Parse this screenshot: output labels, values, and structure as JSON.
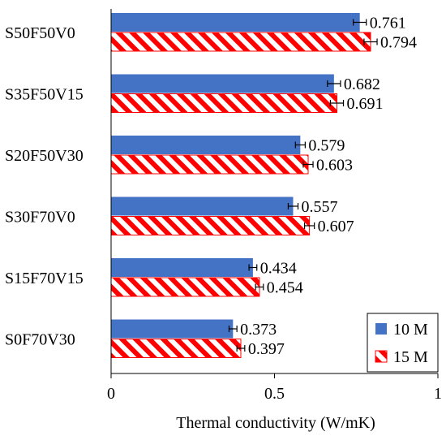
{
  "chart_data": {
    "type": "bar",
    "orientation": "horizontal",
    "title": "",
    "xlabel": "Thermal conductivity (W/mK)",
    "ylabel": "",
    "xlim": [
      0,
      1
    ],
    "xticks": [
      "0",
      "0.5",
      "1"
    ],
    "grid": false,
    "legend_position": "bottom-right",
    "categories": [
      "S50F50V0",
      "S35F50V15",
      "S20F50V30",
      "S30F70V0",
      "S15F70V15",
      "S0F70V30"
    ],
    "series": [
      {
        "name": "10 M",
        "color": "#4472C4",
        "pattern": "solid",
        "values": [
          0.761,
          0.682,
          0.579,
          0.557,
          0.434,
          0.373
        ],
        "labels": [
          "0.761",
          "0.682",
          "0.579",
          "0.557",
          "0.434",
          "0.373"
        ],
        "errors": [
          0.02,
          0.02,
          0.015,
          0.015,
          0.012,
          0.012
        ]
      },
      {
        "name": "15 M",
        "color": "#FF0000",
        "pattern": "diagonal-hatch",
        "values": [
          0.794,
          0.691,
          0.603,
          0.607,
          0.454,
          0.397
        ],
        "labels": [
          "0.794",
          "0.691",
          "0.603",
          "0.607",
          "0.454",
          "0.397"
        ],
        "errors": [
          0.02,
          0.02,
          0.015,
          0.015,
          0.012,
          0.012
        ]
      }
    ]
  }
}
